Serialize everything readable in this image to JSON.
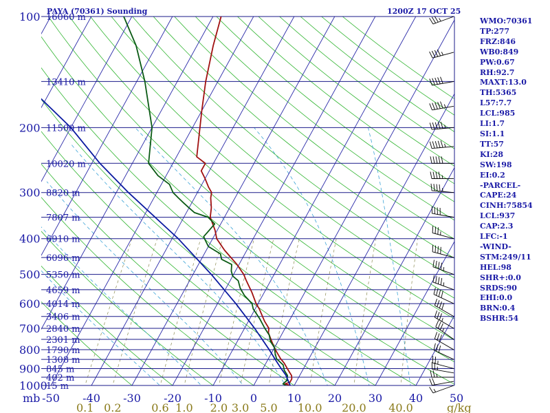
{
  "header": {
    "title": "PAYA (70361) Sounding",
    "time": "1200Z 17 OCT 25"
  },
  "units": {
    "pressure": "mb",
    "mixing_ratio": "g/kg"
  },
  "indices": [
    "WMO:70361",
    "TP:277",
    "FRZ:846",
    "WB0:849",
    "PW:0.67",
    "RH:92.7",
    "MAXT:13.0",
    "TH:5365",
    "L57:7.7",
    "LCL:985",
    "LI:1.7",
    "SI:1.1",
    "TT:57",
    "KI:28",
    "SW:198",
    "EI:0.2",
    "-PARCEL-",
    "CAPE:24",
    "CINH:75854",
    "LCL:937",
    "CAP:2.3",
    "LFC:-1",
    "-WIND-",
    "STM:249/11",
    "HEL:98",
    "SHR+:0.0",
    "SRDS:90",
    "EHI:0.0",
    "BRN:0.4",
    "BSHR:54"
  ],
  "chart_data": {
    "type": "skew-t log-p sounding",
    "title": "PAYA (70361) Sounding",
    "ylabel": "mb",
    "ylim": [
      1000,
      100
    ],
    "xlim": [
      -50,
      50
    ],
    "pressure_ticks": [
      100,
      200,
      300,
      400,
      500,
      600,
      700,
      800,
      900,
      1000
    ],
    "pressure_tick_labels": [
      "100",
      "200",
      "300",
      "400",
      "500",
      "600",
      "700",
      "800",
      "900",
      "1000"
    ],
    "temperature_ticks": [
      -50,
      -40,
      -30,
      -20,
      -10,
      0,
      10,
      20,
      30,
      40,
      50
    ],
    "temperature_tick_labels": [
      "-50",
      "-40",
      "-30",
      "-20",
      "-10",
      "0",
      "10",
      "20",
      "30",
      "40",
      "50"
    ],
    "mixing_ratio_ticks": [
      0.1,
      0.2,
      0.6,
      1.0,
      2.0,
      3.0,
      5.0,
      10.0,
      20.0,
      40.0
    ],
    "mixing_ratio_tick_labels": [
      "0.1",
      "0.2",
      "0.6",
      "1.0",
      "2.0",
      "3.0",
      "5.0",
      "10.0",
      "20.0",
      "40.0"
    ],
    "heights": [
      {
        "p": 100,
        "label": "16060 m"
      },
      {
        "p": 150,
        "label": "13410 m"
      },
      {
        "p": 200,
        "label": "11500 m"
      },
      {
        "p": 250,
        "label": "10020 m"
      },
      {
        "p": 300,
        "label": "8820 m"
      },
      {
        "p": 350,
        "label": "7807 m"
      },
      {
        "p": 400,
        "label": "6910 m"
      },
      {
        "p": 450,
        "label": "6096 m"
      },
      {
        "p": 500,
        "label": "5350 m"
      },
      {
        "p": 550,
        "label": "4659 m"
      },
      {
        "p": 600,
        "label": "4014 m"
      },
      {
        "p": 650,
        "label": "3406 m"
      },
      {
        "p": 700,
        "label": "2840 m"
      },
      {
        "p": 750,
        "label": "2301 m"
      },
      {
        "p": 800,
        "label": "1790 m"
      },
      {
        "p": 850,
        "label": "1308 m"
      },
      {
        "p": 900,
        "label": "845 m"
      },
      {
        "p": 950,
        "label": "402 m"
      },
      {
        "p": 1000,
        "label": "15 m"
      }
    ],
    "series": [
      {
        "name": "temperature",
        "color": "#a01010",
        "points": [
          {
            "p": 1000,
            "t": 9.0
          },
          {
            "p": 990,
            "t": 7.5
          },
          {
            "p": 980,
            "t": 8.5
          },
          {
            "p": 960,
            "t": 8.5
          },
          {
            "p": 940,
            "t": 8.0
          },
          {
            "p": 920,
            "t": 7.0
          },
          {
            "p": 900,
            "t": 6.0
          },
          {
            "p": 870,
            "t": 4.5
          },
          {
            "p": 846,
            "t": 3.0
          },
          {
            "p": 800,
            "t": 0.5
          },
          {
            "p": 760,
            "t": -1.5
          },
          {
            "p": 720,
            "t": -3.5
          },
          {
            "p": 700,
            "t": -4.0
          },
          {
            "p": 670,
            "t": -6.0
          },
          {
            "p": 620,
            "t": -9.0
          },
          {
            "p": 600,
            "t": -10.5
          },
          {
            "p": 560,
            "t": -13.0
          },
          {
            "p": 520,
            "t": -16.0
          },
          {
            "p": 500,
            "t": -17.5
          },
          {
            "p": 470,
            "t": -20.5
          },
          {
            "p": 430,
            "t": -25.5
          },
          {
            "p": 400,
            "t": -29.0
          },
          {
            "p": 380,
            "t": -30.5
          },
          {
            "p": 350,
            "t": -33.5
          },
          {
            "p": 330,
            "t": -34.5
          },
          {
            "p": 310,
            "t": -36.0
          },
          {
            "p": 300,
            "t": -36.5
          },
          {
            "p": 290,
            "t": -38.0
          },
          {
            "p": 275,
            "t": -40.0
          },
          {
            "p": 262,
            "t": -42.0
          },
          {
            "p": 250,
            "t": -42.0
          },
          {
            "p": 240,
            "t": -45.0
          },
          {
            "p": 180,
            "t": -50.0
          },
          {
            "p": 150,
            "t": -53.0
          },
          {
            "p": 120,
            "t": -56.0
          },
          {
            "p": 100,
            "t": -58.0
          }
        ]
      },
      {
        "name": "dewpoint",
        "color": "#0a5a14",
        "points": [
          {
            "p": 1000,
            "t": 8.0
          },
          {
            "p": 990,
            "t": 7.0
          },
          {
            "p": 970,
            "t": 7.5
          },
          {
            "p": 940,
            "t": 7.0
          },
          {
            "p": 910,
            "t": 5.5
          },
          {
            "p": 880,
            "t": 4.5
          },
          {
            "p": 846,
            "t": 2.0
          },
          {
            "p": 820,
            "t": 1.0
          },
          {
            "p": 790,
            "t": 0.0
          },
          {
            "p": 760,
            "t": -1.8
          },
          {
            "p": 730,
            "t": -3.0
          },
          {
            "p": 700,
            "t": -5.0
          },
          {
            "p": 660,
            "t": -7.5
          },
          {
            "p": 620,
            "t": -10.5
          },
          {
            "p": 600,
            "t": -11.5
          },
          {
            "p": 570,
            "t": -14.5
          },
          {
            "p": 545,
            "t": -16.5
          },
          {
            "p": 520,
            "t": -18.0
          },
          {
            "p": 505,
            "t": -20.0
          },
          {
            "p": 490,
            "t": -21.0
          },
          {
            "p": 470,
            "t": -21.8
          },
          {
            "p": 455,
            "t": -25.0
          },
          {
            "p": 440,
            "t": -26.0
          },
          {
            "p": 420,
            "t": -30.0
          },
          {
            "p": 405,
            "t": -31.5
          },
          {
            "p": 395,
            "t": -32.5
          },
          {
            "p": 380,
            "t": -32.0
          },
          {
            "p": 365,
            "t": -31.5
          },
          {
            "p": 350,
            "t": -34.0
          },
          {
            "p": 340,
            "t": -38.0
          },
          {
            "p": 330,
            "t": -40.0
          },
          {
            "p": 320,
            "t": -42.0
          },
          {
            "p": 310,
            "t": -44.0
          },
          {
            "p": 300,
            "t": -46.0
          },
          {
            "p": 285,
            "t": -48.0
          },
          {
            "p": 270,
            "t": -52.0
          },
          {
            "p": 250,
            "t": -56.0
          },
          {
            "p": 200,
            "t": -60.0
          },
          {
            "p": 150,
            "t": -68.0
          },
          {
            "p": 120,
            "t": -75.0
          },
          {
            "p": 100,
            "t": -82.0
          }
        ]
      },
      {
        "name": "parcel",
        "color": "#0a1aa0",
        "points": [
          {
            "p": 1000,
            "t": 9.0
          },
          {
            "p": 937,
            "t": 6.5
          },
          {
            "p": 900,
            "t": 4.5
          },
          {
            "p": 850,
            "t": 1.8
          },
          {
            "p": 800,
            "t": -1.0
          },
          {
            "p": 700,
            "t": -7.5
          },
          {
            "p": 600,
            "t": -15.5
          },
          {
            "p": 500,
            "t": -25.5
          },
          {
            "p": 400,
            "t": -38.5
          },
          {
            "p": 300,
            "t": -57.0
          },
          {
            "p": 250,
            "t": -68.0
          },
          {
            "p": 200,
            "t": -80.0
          },
          {
            "p": 150,
            "t": -98.0
          },
          {
            "p": 120,
            "t": -112.0
          }
        ]
      }
    ],
    "wind_barbs": [
      {
        "p": 1000,
        "dir": 250,
        "spd": 15
      },
      {
        "p": 975,
        "dir": 260,
        "spd": 20
      },
      {
        "p": 950,
        "dir": 270,
        "spd": 25
      },
      {
        "p": 925,
        "dir": 280,
        "spd": 25
      },
      {
        "p": 900,
        "dir": 285,
        "spd": 25
      },
      {
        "p": 850,
        "dir": 295,
        "spd": 30
      },
      {
        "p": 800,
        "dir": 300,
        "spd": 30
      },
      {
        "p": 750,
        "dir": 305,
        "spd": 35
      },
      {
        "p": 700,
        "dir": 300,
        "spd": 35
      },
      {
        "p": 650,
        "dir": 300,
        "spd": 40
      },
      {
        "p": 600,
        "dir": 295,
        "spd": 40
      },
      {
        "p": 550,
        "dir": 290,
        "spd": 45
      },
      {
        "p": 500,
        "dir": 290,
        "spd": 45
      },
      {
        "p": 450,
        "dir": 285,
        "spd": 40
      },
      {
        "p": 400,
        "dir": 285,
        "spd": 35
      },
      {
        "p": 350,
        "dir": 280,
        "spd": 40
      },
      {
        "p": 300,
        "dir": 275,
        "spd": 45
      },
      {
        "p": 275,
        "dir": 270,
        "spd": 45
      },
      {
        "p": 250,
        "dir": 270,
        "spd": 50
      },
      {
        "p": 225,
        "dir": 265,
        "spd": 55
      },
      {
        "p": 200,
        "dir": 265,
        "spd": 55
      },
      {
        "p": 175,
        "dir": 260,
        "spd": 55
      },
      {
        "p": 150,
        "dir": 260,
        "spd": 50
      },
      {
        "p": 125,
        "dir": 255,
        "spd": 45
      },
      {
        "p": 100,
        "dir": 250,
        "spd": 35
      }
    ]
  }
}
